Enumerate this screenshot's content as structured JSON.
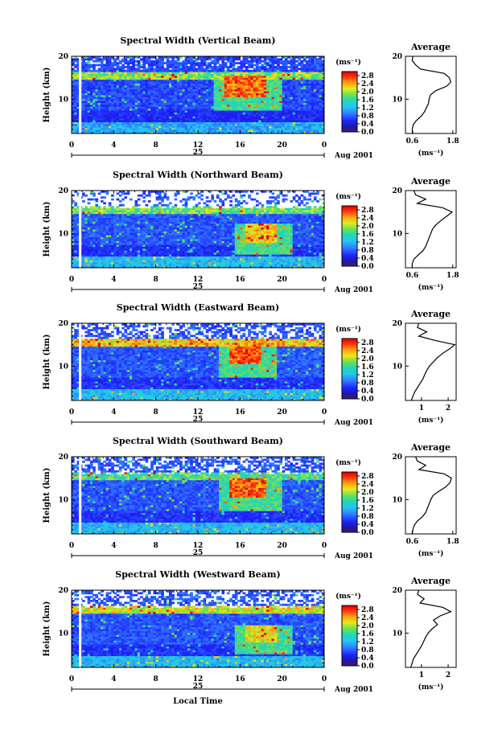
{
  "chart_data": [
    {
      "type": "heatmap",
      "title": "Spectral Width (Vertical Beam)",
      "ylabel": "Height (km)",
      "xticks": [
        "0",
        "4",
        "8",
        "12",
        "16",
        "20",
        "0"
      ],
      "yticks": [
        "20",
        "10"
      ],
      "date_label": "25",
      "month_label": "Aug 2001",
      "xlim": [
        0,
        24
      ],
      "ylim": [
        2,
        20
      ],
      "colorbar": {
        "unit": "(ms⁻¹)",
        "ticks": [
          "2.8",
          "2.4",
          "2.0",
          "1.6",
          "1.2",
          "0.8",
          "0.4",
          "0.0"
        ],
        "range": [
          0,
          3.0
        ]
      },
      "profile": {
        "title": "Average",
        "xlabel": "(ms⁻¹)",
        "xticks": [
          "0.6",
          "1.8"
        ],
        "xlim": [
          0.4,
          1.9
        ],
        "yticks": [
          "20",
          "10"
        ],
        "height": [
          2,
          3,
          4,
          5,
          6,
          7,
          8,
          9,
          10,
          11,
          12,
          13,
          14,
          15,
          16,
          17,
          18,
          19,
          20
        ],
        "value": [
          0.62,
          0.6,
          0.63,
          0.72,
          0.86,
          0.96,
          1.02,
          1.08,
          1.1,
          1.14,
          1.3,
          1.62,
          1.74,
          1.7,
          1.55,
          0.85,
          0.7,
          0.6,
          0.62
        ]
      },
      "features": {
        "bg": 0.7,
        "bl_top": 4.5,
        "bl_val": 1.1,
        "tropo": 15.5,
        "tropo_val": 2.0,
        "gap_above": 17,
        "gap_frac": 0.1,
        "hot_t": [
          14.5,
          18.5
        ],
        "hot_h": [
          10.5,
          15.5
        ],
        "hot_val": 2.7
      }
    },
    {
      "type": "heatmap",
      "title": "Spectral Width (Northward Beam)",
      "ylabel": "Height (km)",
      "xticks": [
        "0",
        "4",
        "8",
        "12",
        "16",
        "20",
        "0"
      ],
      "yticks": [
        "20",
        "10"
      ],
      "date_label": "25",
      "month_label": "Aug 2001",
      "xlim": [
        0,
        24
      ],
      "ylim": [
        2,
        20
      ],
      "colorbar": {
        "unit": "(ms⁻¹)",
        "ticks": [
          "2.8",
          "2.4",
          "2.0",
          "1.6",
          "1.2",
          "0.8",
          "0.4",
          "0.0"
        ],
        "range": [
          0,
          3.0
        ]
      },
      "profile": {
        "title": "Average",
        "xlabel": "(ms⁻¹)",
        "xticks": [
          "0.6",
          "1.8"
        ],
        "xlim": [
          0.4,
          1.9
        ],
        "yticks": [
          "20",
          "10"
        ],
        "height": [
          2,
          3,
          4,
          5,
          6,
          7,
          8,
          9,
          10,
          11,
          12,
          13,
          14,
          15,
          16,
          17,
          18,
          19,
          20
        ],
        "value": [
          0.6,
          0.6,
          0.65,
          0.78,
          0.92,
          1.0,
          1.05,
          1.1,
          1.15,
          1.2,
          1.3,
          1.45,
          1.62,
          1.78,
          1.5,
          0.75,
          1.0,
          0.7,
          0.65
        ]
      },
      "features": {
        "bg": 0.75,
        "bl_top": 4.5,
        "bl_val": 1.2,
        "tropo": 15.5,
        "tropo_val": 1.9,
        "gap_above": 16,
        "gap_frac": 0.55,
        "hot_t": [
          16.5,
          19.5
        ],
        "hot_h": [
          8,
          12.5
        ],
        "hot_val": 2.4
      }
    },
    {
      "type": "heatmap",
      "title": "Spectral Width (Eastward Beam)",
      "ylabel": "Height (km)",
      "xticks": [
        "0",
        "4",
        "8",
        "12",
        "16",
        "20",
        "0"
      ],
      "yticks": [
        "20",
        "10"
      ],
      "date_label": "25",
      "month_label": "Aug 2001",
      "xlim": [
        0,
        24
      ],
      "ylim": [
        2,
        20
      ],
      "colorbar": {
        "unit": "(ms⁻¹)",
        "ticks": [
          "2.8",
          "2.4",
          "2.0",
          "1.6",
          "1.2",
          "0.8",
          "0.4",
          "0.0"
        ],
        "range": [
          0,
          3.0
        ]
      },
      "profile": {
        "title": "Average",
        "xlabel": "(ms⁻¹)",
        "xticks": [
          "1",
          "2"
        ],
        "xlim": [
          0.4,
          2.3
        ],
        "yticks": [
          "20",
          "10"
        ],
        "height": [
          2,
          3,
          4,
          5,
          6,
          7,
          8,
          9,
          10,
          11,
          12,
          13,
          14,
          15,
          16,
          17,
          18,
          19,
          20
        ],
        "value": [
          0.62,
          0.68,
          0.75,
          0.85,
          0.95,
          1.05,
          1.12,
          1.2,
          1.3,
          1.45,
          1.6,
          1.8,
          2.05,
          2.25,
          1.5,
          0.9,
          1.2,
          0.85,
          0.9
        ]
      },
      "features": {
        "bg": 0.75,
        "bl_top": 4.5,
        "bl_val": 1.2,
        "tropo": 15.5,
        "tropo_val": 2.4,
        "gap_above": 16.5,
        "gap_frac": 0.35,
        "hot_t": [
          15,
          18
        ],
        "hot_h": [
          10.5,
          14.5
        ],
        "hot_val": 2.75
      }
    },
    {
      "type": "heatmap",
      "title": "Spectral Width (Southward Beam)",
      "ylabel": "Height (km)",
      "xticks": [
        "0",
        "4",
        "8",
        "12",
        "16",
        "20",
        "0"
      ],
      "yticks": [
        "20",
        "10"
      ],
      "date_label": "25",
      "month_label": "Aug 2001",
      "xlim": [
        0,
        24
      ],
      "ylim": [
        2,
        20
      ],
      "colorbar": {
        "unit": "(ms⁻¹)",
        "ticks": [
          "2.8",
          "2.4",
          "2.0",
          "1.6",
          "1.2",
          "0.8",
          "0.4",
          "0.0"
        ],
        "range": [
          0,
          3.0
        ]
      },
      "profile": {
        "title": "Average",
        "xlabel": "(ms⁻¹)",
        "xticks": [
          "0.6",
          "1.8"
        ],
        "xlim": [
          0.4,
          1.9
        ],
        "yticks": [
          "20",
          "10"
        ],
        "height": [
          2,
          3,
          4,
          5,
          6,
          7,
          8,
          9,
          10,
          11,
          12,
          13,
          14,
          15,
          16,
          17,
          18,
          19,
          20
        ],
        "value": [
          0.6,
          0.62,
          0.66,
          0.75,
          0.9,
          1.0,
          1.05,
          1.1,
          1.15,
          1.22,
          1.4,
          1.6,
          1.72,
          1.76,
          1.55,
          0.8,
          1.0,
          0.75,
          0.7
        ]
      },
      "features": {
        "bg": 0.75,
        "bl_top": 4.5,
        "bl_val": 1.2,
        "tropo": 15.5,
        "tropo_val": 1.8,
        "gap_above": 16,
        "gap_frac": 0.3,
        "hot_t": [
          15,
          18.5
        ],
        "hot_h": [
          10.5,
          15
        ],
        "hot_val": 2.7
      }
    },
    {
      "type": "heatmap",
      "title": "Spectral Width (Westward Beam)",
      "ylabel": "Height (km)",
      "xticks": [
        "0",
        "4",
        "8",
        "12",
        "16",
        "20",
        "0"
      ],
      "yticks": [
        "20",
        "10"
      ],
      "date_label": "25",
      "month_label": "Aug 2001",
      "xlabel": "Local Time",
      "xlim": [
        0,
        24
      ],
      "ylim": [
        2,
        20
      ],
      "colorbar": {
        "unit": "(ms⁻¹)",
        "ticks": [
          "2.8",
          "2.4",
          "2.0",
          "1.6",
          "1.2",
          "0.8",
          "0.4",
          "0.0"
        ],
        "range": [
          0,
          3.0
        ]
      },
      "profile": {
        "title": "Average",
        "xlabel": "(ms⁻¹)",
        "xticks": [
          "1",
          "2"
        ],
        "xlim": [
          0.4,
          2.3
        ],
        "yticks": [
          "20",
          "10"
        ],
        "height": [
          2,
          3,
          4,
          5,
          6,
          7,
          8,
          9,
          10,
          11,
          12,
          13,
          14,
          15,
          16,
          17,
          18,
          19,
          20
        ],
        "value": [
          0.6,
          0.65,
          0.7,
          0.8,
          0.9,
          1.0,
          1.08,
          1.15,
          1.25,
          1.4,
          1.6,
          1.45,
          1.7,
          2.1,
          1.8,
          0.95,
          1.1,
          0.85,
          0.9
        ]
      },
      "features": {
        "bg": 0.75,
        "bl_top": 4.5,
        "bl_val": 1.2,
        "tropo": 15.5,
        "tropo_val": 2.2,
        "gap_above": 16,
        "gap_frac": 0.35,
        "hot_t": [
          16.5,
          19.5
        ],
        "hot_h": [
          8,
          12
        ],
        "hot_val": 2.3
      }
    }
  ]
}
